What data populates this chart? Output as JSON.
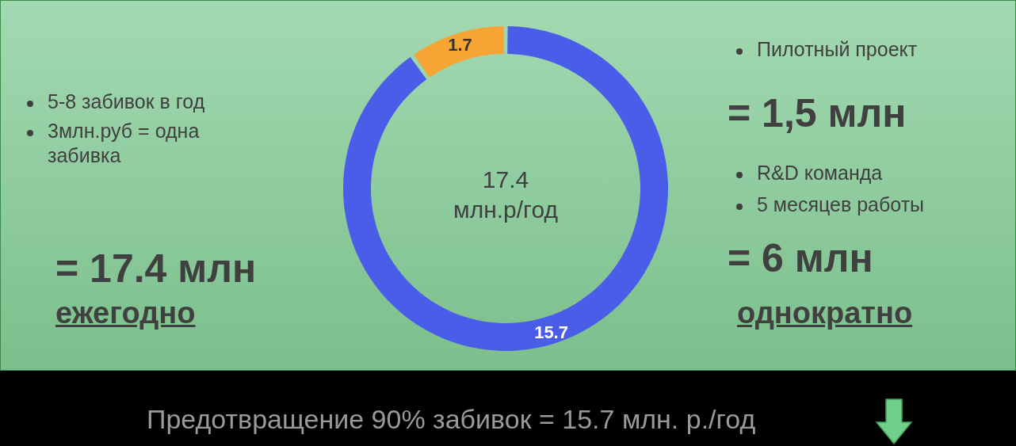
{
  "chart_data": {
    "type": "donut",
    "categories": [
      null,
      null
    ],
    "values": [
      15.7,
      1.7
    ],
    "colors": [
      "#4a5de8",
      "#f6a534"
    ],
    "data_labels": true,
    "annotations": [
      "5-8 забивок в год",
      "3млн.руб = одна забивка",
      "= 17.4 млн",
      "ежегодно",
      "17.4 млн.р/год",
      "Пилотный проект",
      "= 1,5 млн",
      "R&D команда",
      "5 месяцев работы",
      "= 6 млн",
      "однократно",
      "Предотвращение 90% забивок = 15.7 млн. р./год"
    ]
  }
}
